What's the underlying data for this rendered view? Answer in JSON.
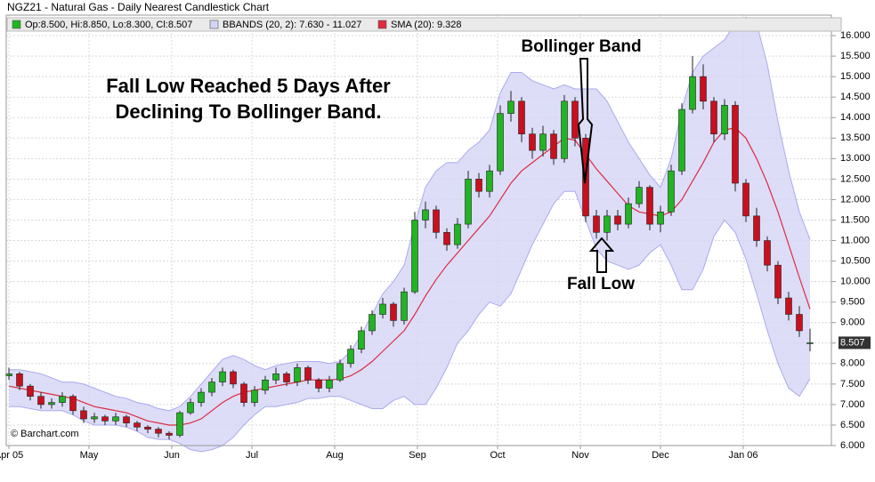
{
  "chart_data": {
    "type": "candlestick",
    "title": "NGZ21 - Natural Gas - Daily Nearest Candlestick Chart",
    "watermark": "© Barchart.com",
    "annotations": [
      "Fall Low Reached 5 Days After",
      "Declining To Bollinger Band.",
      "Bollinger Band",
      "Fall Low"
    ],
    "grid": true,
    "x": [
      0,
      4,
      8,
      12,
      16,
      20,
      24,
      28,
      32,
      36,
      40,
      44,
      48,
      52,
      56,
      60,
      64,
      68,
      72,
      76,
      80,
      84,
      88,
      92,
      96,
      100,
      104,
      108,
      112,
      116,
      120,
      124,
      128,
      132,
      136,
      140,
      144,
      148,
      152,
      156,
      160,
      164,
      168,
      172,
      176,
      180,
      184,
      188,
      192,
      196,
      200,
      204,
      208,
      212,
      216,
      220,
      224,
      228,
      232,
      236,
      240,
      244,
      248,
      252,
      256,
      260,
      264,
      268,
      272,
      276,
      280,
      284,
      288,
      292,
      296,
      300
    ],
    "xlim": [
      -1,
      308
    ],
    "xticks": [
      {
        "value": 0,
        "label": "Apr 05"
      },
      {
        "value": 30,
        "label": "May"
      },
      {
        "value": 61,
        "label": "Jun"
      },
      {
        "value": 91,
        "label": "Jul"
      },
      {
        "value": 122,
        "label": "Aug"
      },
      {
        "value": 153,
        "label": "Sep"
      },
      {
        "value": 183,
        "label": "Oct"
      },
      {
        "value": 214,
        "label": "Nov"
      },
      {
        "value": 244,
        "label": "Dec"
      },
      {
        "value": 275,
        "label": "Jan 06"
      }
    ],
    "ylim": [
      6,
      16.5
    ],
    "yticks": [
      {
        "value": 6,
        "label": "6.000"
      },
      {
        "value": 6.5,
        "label": "6.500"
      },
      {
        "value": 7,
        "label": "7.000"
      },
      {
        "value": 7.5,
        "label": "7.500"
      },
      {
        "value": 8,
        "label": "8.000"
      },
      {
        "value": 8.5,
        "label": "8.500"
      },
      {
        "value": 9,
        "label": "9.000"
      },
      {
        "value": 9.5,
        "label": "9.500"
      },
      {
        "value": 10,
        "label": "10.000"
      },
      {
        "value": 10.5,
        "label": "10.500"
      },
      {
        "value": 11,
        "label": "11.000"
      },
      {
        "value": 11.5,
        "label": "11.500"
      },
      {
        "value": 12,
        "label": "12.000"
      },
      {
        "value": 12.5,
        "label": "12.500"
      },
      {
        "value": 13,
        "label": "13.000"
      },
      {
        "value": 13.5,
        "label": "13.500"
      },
      {
        "value": 14,
        "label": "14.000"
      },
      {
        "value": 14.5,
        "label": "14.500"
      },
      {
        "value": 15,
        "label": "15.000"
      },
      {
        "value": 15.5,
        "label": "15.500"
      },
      {
        "value": 16,
        "label": "16.000"
      }
    ],
    "series": [
      {
        "name": "Op:8.500, Hi:8.850, Lo:8.300, Cl:8.507",
        "color": "#22b422",
        "down_color": "#c8101e",
        "open": [
          7.7,
          7.75,
          7.45,
          7.2,
          7.0,
          7.05,
          7.2,
          6.85,
          6.65,
          6.7,
          6.6,
          6.7,
          6.55,
          6.45,
          6.4,
          6.3,
          6.25,
          6.8,
          7.05,
          7.3,
          7.55,
          7.8,
          7.5,
          7.05,
          7.35,
          7.6,
          7.75,
          7.55,
          7.9,
          7.6,
          7.4,
          7.6,
          8.0,
          8.35,
          8.8,
          9.2,
          9.45,
          9.05,
          9.75,
          11.5,
          11.75,
          11.2,
          10.9,
          11.4,
          12.5,
          12.2,
          12.7,
          14.1,
          14.4,
          13.6,
          13.2,
          13.6,
          13.0,
          14.4,
          13.5,
          11.6,
          11.2,
          11.6,
          11.4,
          11.9,
          12.3,
          11.4,
          11.7,
          12.7,
          14.2,
          15.0,
          14.4,
          13.6,
          14.3,
          12.4,
          11.6,
          11.0,
          10.4,
          9.6,
          9.2,
          8.5
        ],
        "high": [
          7.9,
          7.8,
          7.5,
          7.3,
          7.15,
          7.3,
          7.25,
          6.95,
          6.8,
          6.75,
          6.8,
          6.75,
          6.6,
          6.5,
          6.45,
          6.35,
          6.85,
          7.15,
          7.4,
          7.65,
          7.9,
          7.85,
          7.55,
          7.45,
          7.7,
          7.9,
          7.8,
          8.0,
          7.95,
          7.65,
          7.7,
          8.1,
          8.45,
          8.9,
          9.3,
          9.6,
          9.5,
          9.85,
          11.7,
          11.95,
          11.85,
          11.3,
          11.55,
          12.7,
          12.65,
          12.85,
          14.3,
          14.65,
          14.5,
          13.75,
          13.8,
          13.7,
          14.55,
          14.5,
          13.6,
          11.75,
          11.75,
          11.75,
          12.05,
          12.45,
          12.35,
          11.85,
          12.85,
          14.35,
          15.5,
          15.3,
          14.5,
          14.45,
          14.4,
          12.5,
          11.8,
          11.1,
          10.5,
          9.75,
          9.4,
          8.85
        ],
        "low": [
          7.6,
          7.35,
          7.1,
          6.9,
          6.9,
          6.95,
          6.75,
          6.55,
          6.55,
          6.5,
          6.5,
          6.45,
          6.35,
          6.3,
          6.2,
          6.15,
          6.2,
          6.75,
          6.95,
          7.2,
          7.45,
          7.4,
          6.95,
          6.95,
          7.25,
          7.5,
          7.45,
          7.45,
          7.5,
          7.3,
          7.3,
          7.55,
          7.9,
          8.25,
          8.7,
          9.1,
          8.9,
          8.95,
          9.7,
          11.3,
          11.05,
          10.75,
          10.8,
          11.3,
          12.05,
          12.05,
          12.6,
          13.9,
          13.4,
          13.0,
          13.05,
          12.85,
          12.9,
          13.3,
          11.45,
          11.05,
          11.0,
          11.25,
          11.3,
          11.8,
          11.25,
          11.2,
          11.6,
          12.6,
          14.1,
          14.2,
          13.4,
          13.45,
          12.2,
          11.45,
          10.85,
          10.25,
          9.45,
          9.05,
          8.65,
          8.3
        ],
        "close": [
          7.75,
          7.45,
          7.2,
          7.0,
          7.05,
          7.2,
          6.85,
          6.65,
          6.7,
          6.6,
          6.7,
          6.55,
          6.45,
          6.4,
          6.3,
          6.25,
          6.8,
          7.05,
          7.3,
          7.55,
          7.8,
          7.5,
          7.05,
          7.35,
          7.6,
          7.75,
          7.55,
          7.9,
          7.6,
          7.4,
          7.6,
          8.0,
          8.35,
          8.8,
          9.2,
          9.45,
          9.05,
          9.75,
          11.5,
          11.75,
          11.2,
          10.9,
          11.4,
          12.5,
          12.2,
          12.7,
          14.1,
          14.4,
          13.6,
          13.2,
          13.6,
          13.0,
          14.4,
          13.5,
          11.6,
          11.2,
          11.6,
          11.4,
          11.9,
          12.3,
          11.4,
          11.7,
          12.7,
          14.2,
          15.0,
          14.4,
          13.6,
          14.3,
          12.4,
          11.6,
          11.0,
          10.4,
          9.6,
          9.2,
          8.8,
          8.507
        ]
      },
      {
        "name": "BBANDS (20, 2): 7.630 - 11.027",
        "color": "#aaaaee",
        "fill": "#d4d4f6",
        "upper": [
          7.85,
          7.85,
          7.8,
          7.75,
          7.65,
          7.55,
          7.55,
          7.5,
          7.4,
          7.3,
          7.2,
          7.15,
          7.05,
          7.0,
          6.9,
          6.85,
          6.95,
          7.2,
          7.5,
          7.8,
          8.1,
          8.2,
          8.1,
          7.95,
          7.85,
          7.95,
          8.0,
          8.05,
          8.05,
          8.05,
          8.0,
          8.05,
          8.3,
          8.7,
          9.2,
          9.7,
          10.0,
          10.4,
          11.4,
          12.3,
          12.7,
          12.9,
          12.9,
          13.2,
          13.4,
          13.7,
          14.6,
          15.1,
          15.1,
          14.9,
          14.8,
          14.7,
          14.8,
          14.7,
          14.7,
          14.7,
          14.4,
          13.9,
          13.4,
          13.0,
          12.6,
          12.3,
          13.0,
          14.2,
          15.1,
          15.5,
          15.7,
          15.9,
          16.3,
          16.45,
          16.3,
          15.3,
          13.9,
          12.7,
          11.7,
          11.027
        ],
        "lower": [
          6.95,
          6.95,
          6.9,
          6.85,
          6.85,
          6.85,
          6.75,
          6.6,
          6.5,
          6.5,
          6.5,
          6.45,
          6.35,
          6.2,
          6.15,
          6.15,
          6.05,
          5.9,
          5.85,
          5.9,
          6.0,
          6.2,
          6.5,
          6.75,
          6.95,
          6.95,
          7.0,
          7.05,
          7.15,
          7.15,
          7.2,
          7.2,
          7.1,
          7.0,
          6.9,
          6.9,
          7.1,
          7.2,
          7.0,
          7.0,
          7.4,
          7.9,
          8.5,
          8.8,
          9.2,
          9.5,
          9.4,
          9.7,
          10.3,
          10.9,
          11.4,
          11.9,
          12.2,
          12.2,
          11.5,
          10.8,
          10.5,
          10.4,
          10.3,
          10.4,
          10.7,
          10.9,
          10.4,
          9.8,
          9.8,
          10.3,
          11.1,
          11.5,
          11.2,
          10.55,
          9.7,
          8.8,
          8.0,
          7.4,
          7.2,
          7.63
        ]
      },
      {
        "name": "SMA (20): 9.328",
        "color": "#dd2b3f",
        "values": [
          7.45,
          7.4,
          7.35,
          7.3,
          7.25,
          7.2,
          7.15,
          7.05,
          6.95,
          6.9,
          6.85,
          6.8,
          6.7,
          6.6,
          6.55,
          6.5,
          6.5,
          6.55,
          6.65,
          6.85,
          7.05,
          7.2,
          7.3,
          7.35,
          7.4,
          7.45,
          7.5,
          7.55,
          7.6,
          7.6,
          7.6,
          7.62,
          7.7,
          7.85,
          8.05,
          8.3,
          8.55,
          8.8,
          9.2,
          9.65,
          10.05,
          10.4,
          10.7,
          11.0,
          11.3,
          11.6,
          12.0,
          12.4,
          12.7,
          12.9,
          13.1,
          13.3,
          13.5,
          13.45,
          13.1,
          12.75,
          12.45,
          12.15,
          11.85,
          11.7,
          11.65,
          11.6,
          11.7,
          12.0,
          12.45,
          12.9,
          13.4,
          13.7,
          13.75,
          13.5,
          13.0,
          12.4,
          11.7,
          10.9,
          10.1,
          9.328
        ]
      }
    ]
  }
}
